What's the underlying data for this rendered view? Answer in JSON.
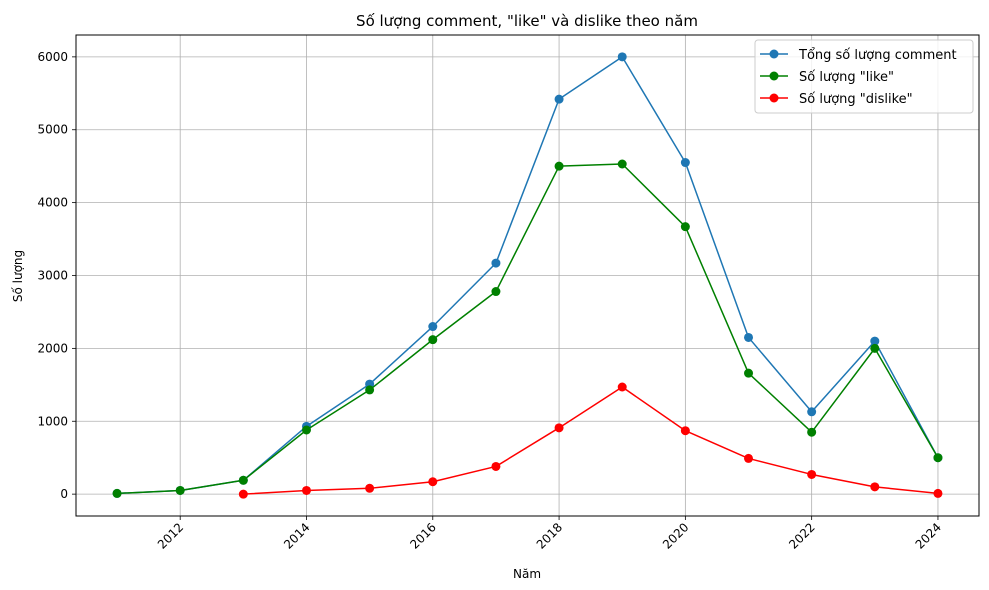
{
  "chart_data": {
    "type": "line",
    "title": "Số lượng comment, \"like\" và dislike theo năm",
    "xlabel": "Năm",
    "ylabel": "Số lượng",
    "xlim": [
      2010.35,
      2024.65
    ],
    "ylim": [
      -300,
      6300
    ],
    "x_ticks": [
      2012,
      2014,
      2016,
      2018,
      2020,
      2022,
      2024
    ],
    "y_ticks": [
      0,
      1000,
      2000,
      3000,
      4000,
      5000,
      6000
    ],
    "grid": true,
    "legend_position": "top-right",
    "series": [
      {
        "name": "Tổng số lượng comment",
        "color": "#1f77b4",
        "x": [
          2011,
          2012,
          2013,
          2014,
          2015,
          2016,
          2017,
          2018,
          2019,
          2020,
          2021,
          2022,
          2023,
          2024
        ],
        "values": [
          10,
          50,
          190,
          930,
          1510,
          2300,
          3170,
          5420,
          6000,
          4550,
          2150,
          1130,
          2100,
          500
        ]
      },
      {
        "name": "Số lượng \"like\"",
        "color": "#008000",
        "x": [
          2011,
          2012,
          2013,
          2014,
          2015,
          2016,
          2017,
          2018,
          2019,
          2020,
          2021,
          2022,
          2023,
          2024
        ],
        "values": [
          10,
          50,
          190,
          880,
          1430,
          2120,
          2780,
          4500,
          4530,
          3670,
          1660,
          850,
          2000,
          500
        ]
      },
      {
        "name": "Số lượng \"dislike\"",
        "color": "#ff0000",
        "x": [
          2013,
          2014,
          2015,
          2016,
          2017,
          2018,
          2019,
          2020,
          2021,
          2022,
          2023,
          2024
        ],
        "values": [
          0,
          50,
          80,
          170,
          380,
          910,
          1470,
          870,
          490,
          270,
          100,
          10
        ]
      }
    ]
  }
}
